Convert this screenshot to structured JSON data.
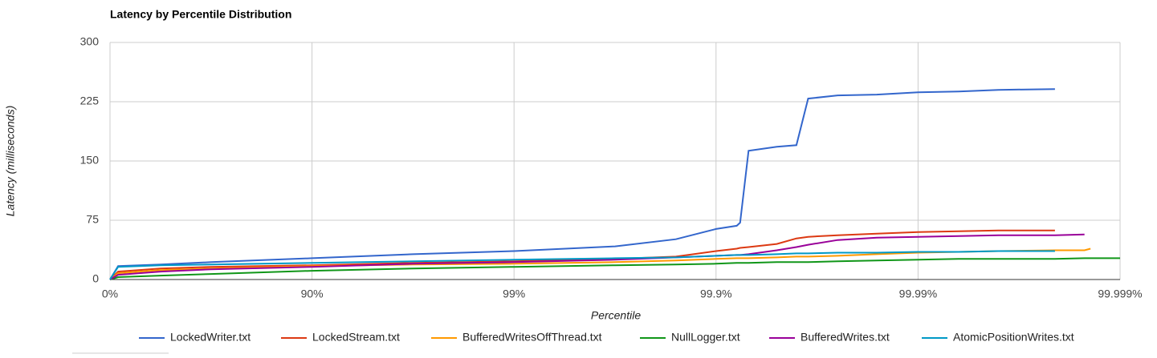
{
  "chart_data": {
    "type": "line",
    "title": "Latency by Percentile Distribution",
    "x_label": "Percentile",
    "y_label": "Latency (milliseconds)",
    "x": [
      0,
      8.8,
      43.8,
      68.4,
      90,
      96.84,
      99,
      99.684,
      99.842,
      99.9,
      99.921,
      99.924,
      99.931,
      99.95,
      99.96,
      99.965,
      99.975,
      99.984,
      99.99,
      99.9937,
      99.996,
      99.9979,
      99.9985,
      99.9986,
      99.999
    ],
    "series": [
      {
        "name": "LockedWriter.txt",
        "color": "#3366cc",
        "values": [
          0,
          17,
          19,
          22,
          27,
          32,
          36,
          42,
          51,
          64,
          68,
          72,
          163,
          168,
          170,
          229,
          233,
          234,
          237,
          238,
          240,
          241,
          null,
          null,
          null
        ]
      },
      {
        "name": "LockedStream.txt",
        "color": "#dc3912",
        "values": [
          0,
          10,
          14,
          16,
          18,
          21,
          23,
          26,
          29,
          36,
          39,
          40,
          41,
          45,
          52,
          54,
          56,
          58,
          60,
          61,
          62,
          62,
          null,
          null,
          null
        ]
      },
      {
        "name": "BufferedWritesOffThread.txt",
        "color": "#ff9900",
        "values": [
          0,
          8,
          12,
          14,
          17,
          19,
          20,
          22,
          24,
          26,
          27,
          27,
          27,
          28,
          29,
          29,
          30,
          32,
          34,
          35,
          36,
          37,
          37,
          39,
          null
        ]
      },
      {
        "name": "NullLogger.txt",
        "color": "#109618",
        "values": [
          0,
          3,
          5,
          7,
          11,
          14,
          16,
          18,
          19,
          20,
          21,
          21,
          21,
          22,
          22,
          22,
          23,
          24,
          25,
          26,
          26,
          26,
          27,
          27,
          27
        ]
      },
      {
        "name": "BufferedWrites.txt",
        "color": "#990099",
        "values": [
          0,
          6,
          10,
          13,
          16,
          20,
          22,
          25,
          28,
          30,
          31,
          31,
          32,
          37,
          41,
          44,
          50,
          53,
          54,
          55,
          56,
          56,
          57,
          null,
          null
        ]
      },
      {
        "name": "AtomicPositionWrites.txt",
        "color": "#0099c6",
        "values": [
          0,
          16,
          18,
          19,
          21,
          23,
          25,
          27,
          28,
          30,
          31,
          31,
          31,
          32,
          33,
          33,
          34,
          34,
          35,
          35,
          36,
          36,
          null,
          null,
          null
        ]
      }
    ],
    "xlim": [
      0,
      99.999
    ],
    "xticks": [
      {
        "value": 0,
        "label": "0%"
      },
      {
        "value": 90,
        "label": "90%"
      },
      {
        "value": 99,
        "label": "99%"
      },
      {
        "value": 99.9,
        "label": "99.9%"
      },
      {
        "value": 99.99,
        "label": "99.99%"
      },
      {
        "value": 99.999,
        "label": "99.999%"
      }
    ],
    "ylim": [
      0,
      300
    ],
    "yticks": [
      0,
      75,
      150,
      225,
      300
    ],
    "grid": true,
    "legend": "bottom"
  }
}
